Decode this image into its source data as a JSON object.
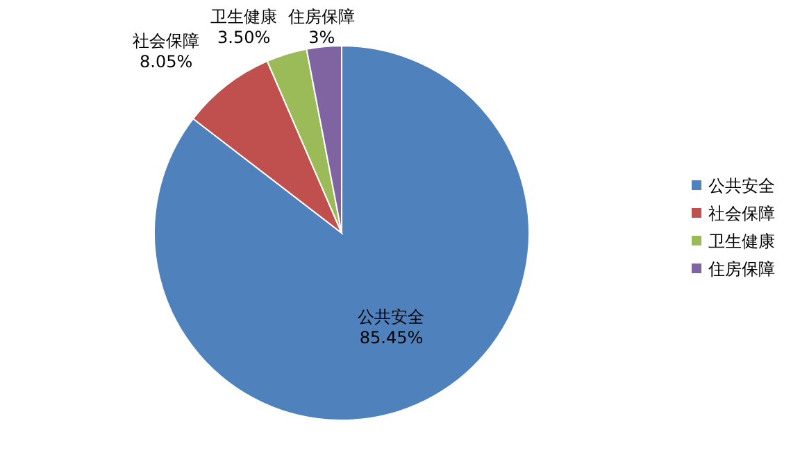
{
  "chart_data": {
    "type": "pie",
    "categories": [
      "公共安全",
      "社会保障",
      "卫生健康",
      "住房保障"
    ],
    "values": [
      85.45,
      8.05,
      3.5,
      3
    ],
    "value_labels": [
      "85.45%",
      "8.05%",
      "3.50%",
      "3%"
    ],
    "colors": [
      "#4f81bd",
      "#c0504d",
      "#9bbb59",
      "#8064a2"
    ],
    "legend": "right"
  }
}
